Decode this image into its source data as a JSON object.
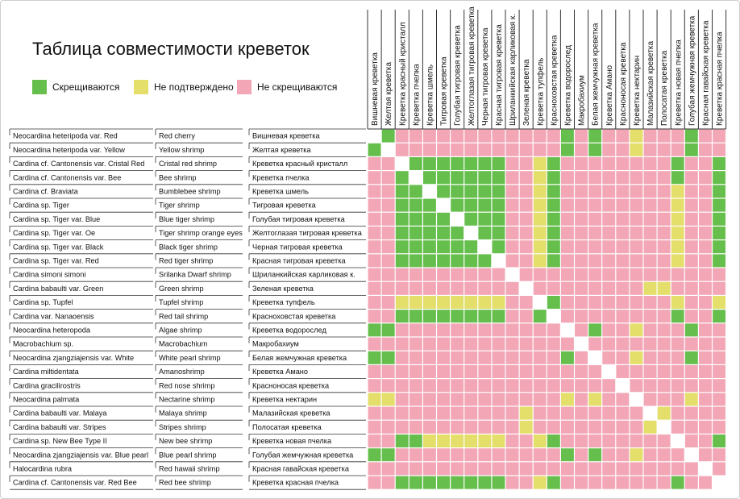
{
  "chart_data": {
    "type": "heatmap",
    "title": "Таблица совместимости креветок",
    "legend": [
      {
        "code": "G",
        "label": "Скрещиваются",
        "color": "#66bf4d"
      },
      {
        "code": "Y",
        "label": "Не подтверждено",
        "color": "#e4de6b"
      },
      {
        "code": "P",
        "label": "Не скрещиваются",
        "color": "#f2a6b6"
      }
    ],
    "diagonal_color": "#ffffff",
    "columns": [
      "Вишневая креветка",
      "Желтая креветка",
      "Креветка красный кристалл",
      "Креветка пчелка",
      "Креветка шмель",
      "Тигровая креветка",
      "Голубая тигровая креветка",
      "Желтоглазая тигровая креветка",
      "Черная тигровая креветка",
      "Красная тигровая креветка",
      "Шриланкийская карликовая к.",
      "Зеленая креветка",
      "Креветка тупфель",
      "Красноховстая креветка",
      "Креветка водорослед",
      "Макробахиум",
      "Белая жемчужная креветка",
      "Креветка Амано",
      "Красноносая креветка",
      "Креветка нектарин",
      "Малазийская креветка",
      "Полосатая креветка",
      "Креветка новая пчелка",
      "Голубая жемчужная креветка",
      "Красная гавайская креветка",
      "Креветка красная пчелка"
    ],
    "rows": [
      {
        "latin": "Neocardina heteripoda var. Red",
        "english": "Red cherry",
        "russian": "Вишневая креветка",
        "cells": "DGPPPPPPPPPPPPGPGPPYPPPGPP"
      },
      {
        "latin": "Neocardina heteripoda var. Yellow",
        "english": "Yellow shrimp",
        "russian": "Желтая креветка",
        "cells": "GDPPPPPPPPPPPPGPGPPYPPPGPP"
      },
      {
        "latin": "Cardina cf. Cantonensis var. Cristal Red",
        "english": "Cristal red shrimp",
        "russian": "Креветка красный кристалл",
        "cells": "PPDGGGGGGGPPYGPPPPPPPPGPPG"
      },
      {
        "latin": "Cardina cf. Cantonensis var. Bee",
        "english": "Bee shrimp",
        "russian": "Креветка пчелка",
        "cells": "PPGDGGGGGGPPYGPPPPPPPPGPPG"
      },
      {
        "latin": "Cardina cf. Braviata",
        "english": "Bumblebee shrimp",
        "russian": "Креветка шмель",
        "cells": "PPGGDGGGGGPPYGPPPPPPPPYPPG"
      },
      {
        "latin": "Cardina sp. Tiger",
        "english": "Tiger shrimp",
        "russian": "Тигровая креветка",
        "cells": "PPGGGDGGGGPPYGPPPPPPPPYPPG"
      },
      {
        "latin": "Cardina sp. Tiger var. Blue",
        "english": "Blue tiger shrimp",
        "russian": "Голубая тигровая креветка",
        "cells": "PPGGGGDGGGPPYGPPPPPPPPYPPG"
      },
      {
        "latin": "Cardina sp. Tiger var. Oe",
        "english": "Tiger shrimp orange eyes",
        "russian": "Желтоглазая тигровая креветка",
        "cells": "PPGGGGGDGGPPYGPPPPPPPPYPPG"
      },
      {
        "latin": "Cardina sp. Tiger var. Black",
        "english": "Black tiger shrimp",
        "russian": "Черная тигровая креветка",
        "cells": "PPGGGGGGDGPPYGPPPPPPPPYPPG"
      },
      {
        "latin": "Cardina sp. Tiger var. Red",
        "english": "Red tiger shrimp",
        "russian": "Красная тигровая креветка",
        "cells": "PPGGGGGGGDPPYGPPPPPPPPYPPG"
      },
      {
        "latin": "Cardina simoni simoni",
        "english": "Srilanka Dwarf shrimp",
        "russian": "Шриланкийская карликовая к.",
        "cells": "PPPPPPPPPPDPPPPPPPPPPPPPPP"
      },
      {
        "latin": "Cardina babaulti var. Green",
        "english": "Green shrimp",
        "russian": "Зеленая креветка",
        "cells": "PPPPPPPPPPPDPPPPPPPPYYPPPP"
      },
      {
        "latin": "Cardina sp. Tupfel",
        "english": "Tupfel shrimp",
        "russian": "Креветка тупфель",
        "cells": "PPYYYYYYYYPPDGPPPPPPPPYPPY"
      },
      {
        "latin": "Cardina var. Nanaoensis",
        "english": "Red tail shrimp",
        "russian": "Красноховстая креветка",
        "cells": "PPGGGGGGGGPPGDPPPPPPPPGPPG"
      },
      {
        "latin": "Neocardina heteropoda",
        "english": "Algae shrimp",
        "russian": "Креветка водорослед",
        "cells": "GGPPPPPPPPPPPPDPGPPYPPPGPP"
      },
      {
        "latin": "Macrobachium sp.",
        "english": "Macrobachium",
        "russian": "Макробахиум",
        "cells": "PPPPPPPPPPPPPPPDPPPPPPPPPP"
      },
      {
        "latin": "Neocardina zjangziajensis var. White",
        "english": "White pearl shrimp",
        "russian": "Белая жемчужная креветка",
        "cells": "GGPPPPPPPPPPPPGPDPPYPPPGPP"
      },
      {
        "latin": "Cardina miltidentata",
        "english": "Amanoshrimp",
        "russian": "Креветка Амано",
        "cells": "PPPPPPPPPPPPPPPPPDPPPPPPPP"
      },
      {
        "latin": "Cardina gracilirostris",
        "english": "Red nose shrimp",
        "russian": "Красноносая креветка",
        "cells": "PPPPPPPPPPPPPPPPPPDPPPPPPP"
      },
      {
        "latin": "Neocardina palmata",
        "english": "Nectarine shrimp",
        "russian": "Креветка нектарин",
        "cells": "YYPPPPPPPPPPPPYPYPPDPPPYPP"
      },
      {
        "latin": "Cardina babaulti var. Malaya",
        "english": "Malaya shrimp",
        "russian": "Малазийская креветка",
        "cells": "PPPPPPPPPPPYPPPPPPPPDYPPPP"
      },
      {
        "latin": "Cardina babaulti var. Stripes",
        "english": "Stripes shrimp",
        "russian": "Полосатая креветка",
        "cells": "PPPPPPPPPPPYPPPPPPPPYDPPPP"
      },
      {
        "latin": "Cardina sp. New Bee Type II",
        "english": "New bee shrimp",
        "russian": "Креветка новая пчелка",
        "cells": "PPGGYYYYYYPPYGPPPPPPPPDPPG"
      },
      {
        "latin": "Neocardina zjangziajensis var. Blue pearl",
        "english": "Blue pearl shrimp",
        "russian": "Голубая жемчужная креветка",
        "cells": "GGPPPPPPPPPPPPGPGPPYPPPDPP"
      },
      {
        "latin": "Halocardina rubra",
        "english": "Red hawaii shrimp",
        "russian": "Красная гавайская креветка",
        "cells": "PPPPPPPPPPPPPPPPPPPPPPPPDP"
      },
      {
        "latin": "Cardina cf. Cantonensis var. Red Bee",
        "english": "Red bee shrimp",
        "russian": "Креветка красная пчелка",
        "cells": "PPGGGGGGGGPPYGPPPPPPPPGPPD"
      }
    ]
  }
}
